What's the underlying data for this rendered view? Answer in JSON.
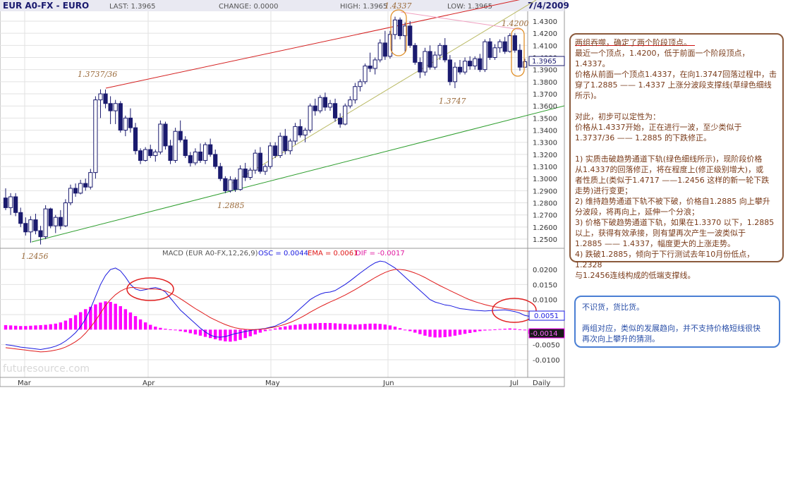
{
  "header": {
    "symbol": "EUR A0-FX - EURO",
    "last": "LAST: 1.3965",
    "change": "CHANGE: 0.0000",
    "high": "HIGH: 1.3965",
    "low": "LOW: 1.3965",
    "date": "7/4/2009"
  },
  "price_panel": {
    "y_ticks": [
      "1.4300",
      "1.4200",
      "1.4100",
      "1.4000",
      "1.3900",
      "1.3800",
      "1.3700",
      "1.3600",
      "1.3500",
      "1.3400",
      "1.3300",
      "1.3200",
      "1.3100",
      "1.3000",
      "1.2900",
      "1.2800",
      "1.2700",
      "1.2600",
      "1.2500"
    ],
    "last_price_label": "1.3965",
    "annotations": [
      "1.3737/36",
      "1.4337",
      "1.4200",
      "1.3747",
      "1.2885",
      "1.2456"
    ]
  },
  "macd_panel": {
    "header_label": "MACD (EUR A0-FX,12,26,9)",
    "osc_label": "OSC = 0.0044",
    "ema_label": "EMA = 0.0061",
    "dif_label": "DIF = -0.0017",
    "y_ticks": [
      "0.0200",
      "0.0150",
      "0.0100",
      "0.0050",
      "-0.0050",
      "-0.0100"
    ],
    "marker_blue": "0.0051",
    "marker_pink": "-0.0014",
    "watermark": "futuresource.com"
  },
  "x_axis": {
    "months": [
      "Mar",
      "Apr",
      "May",
      "Jun",
      "Jul"
    ],
    "period": "Daily"
  },
  "colors": {
    "candle": "#1a1a6e",
    "trend_red": "#d42020",
    "trend_green": "#2e9e2e",
    "trend_olive": "#b8b860",
    "trend_pink": "#f0a0c0",
    "macd_line": "#1a1ae0",
    "signal_line": "#e01a1a",
    "hist": "#ff00ff",
    "annotation": "#9a6a3a"
  },
  "notes": {
    "main": [
      "两组吞噬，确定了两个阶段顶点。",
      "最近一个顶点，1.4200，低于前面一个阶段顶点，",
      "1.4337。",
      "价格从前面一个顶点1.4337，在向1.3747回落过程中，击",
      "穿了1.2885 —— 1.4337 上涨分波段支撑线(草绿色细线",
      "所示)。",
      "",
      "对此，初步可以定性为：",
      "价格从1.4337开始，正在进行一波，至少类似于",
      "1.3737/36 —— 1.2885 的下跌修正。",
      "",
      "1) 实质击破趋势通道下轨(绿色细线所示)，现阶段价格",
      "从1.4337的回落修正，将在程度上(修正级别增大)，或",
      "者性质上(类似于1.4717 ——1.2456 这样的新一轮下跌",
      "走势)进行变更；",
      "2) 维持趋势通道下轨不被下破，价格自1.2885 向上攀升",
      "分波段，将再向上，延伸一个分浪；",
      "3) 价格下破趋势通道下轨，如果在1.3370 以下，1.2885",
      "以上，获得有效承接，则有望再次产生一波类似于",
      "1.2885 —— 1.4337，幅度更大的上涨走势。",
      "4) 跌破1.2885，倾向于下行测试去年10月份低点，1.2328",
      "与1.2456连线构成的低端支撑线。"
    ],
    "blue": [
      "不识货，货比货。",
      "",
      "两组对应，类似的发展趋向，并不支持价格短线很快",
      "再次向上攀升的猜测。"
    ]
  },
  "chart_data": [
    {
      "type": "candlestick",
      "title": "EUR A0-FX - EURO",
      "xlabel": "",
      "ylabel": "",
      "x_categories": [
        "Mar",
        "Apr",
        "May",
        "Jun",
        "Jul"
      ],
      "ylim": [
        1.24,
        1.44
      ],
      "candles_ohlc": [
        [
          1.284,
          1.292,
          1.274,
          1.276
        ],
        [
          1.276,
          1.288,
          1.27,
          1.285
        ],
        [
          1.285,
          1.288,
          1.269,
          1.272
        ],
        [
          1.272,
          1.276,
          1.26,
          1.263
        ],
        [
          1.263,
          1.268,
          1.253,
          1.256
        ],
        [
          1.256,
          1.269,
          1.247,
          1.266
        ],
        [
          1.266,
          1.271,
          1.254,
          1.257
        ],
        [
          1.257,
          1.261,
          1.2456,
          1.252
        ],
        [
          1.252,
          1.278,
          1.25,
          1.275
        ],
        [
          1.275,
          1.276,
          1.259,
          1.261
        ],
        [
          1.261,
          1.27,
          1.255,
          1.268
        ],
        [
          1.268,
          1.274,
          1.258,
          1.261
        ],
        [
          1.261,
          1.283,
          1.26,
          1.28
        ],
        [
          1.28,
          1.295,
          1.278,
          1.292
        ],
        [
          1.292,
          1.296,
          1.285,
          1.288
        ],
        [
          1.288,
          1.299,
          1.287,
          1.296
        ],
        [
          1.296,
          1.3,
          1.29,
          1.293
        ],
        [
          1.293,
          1.308,
          1.291,
          1.305
        ],
        [
          1.305,
          1.368,
          1.3,
          1.365
        ],
        [
          1.365,
          1.3737,
          1.35,
          1.37
        ],
        [
          1.37,
          1.3736,
          1.358,
          1.362
        ],
        [
          1.362,
          1.368,
          1.345,
          1.356
        ],
        [
          1.356,
          1.365,
          1.345,
          1.362
        ],
        [
          1.362,
          1.364,
          1.338,
          1.34
        ],
        [
          1.34,
          1.352,
          1.335,
          1.35
        ],
        [
          1.35,
          1.358,
          1.338,
          1.342
        ],
        [
          1.342,
          1.346,
          1.32,
          1.323
        ],
        [
          1.323,
          1.325,
          1.312,
          1.315
        ],
        [
          1.315,
          1.326,
          1.314,
          1.324
        ],
        [
          1.324,
          1.328,
          1.317,
          1.319
        ],
        [
          1.319,
          1.324,
          1.314,
          1.322
        ],
        [
          1.322,
          1.348,
          1.32,
          1.345
        ],
        [
          1.345,
          1.347,
          1.324,
          1.327
        ],
        [
          1.327,
          1.332,
          1.312,
          1.315
        ],
        [
          1.315,
          1.342,
          1.313,
          1.339
        ],
        [
          1.339,
          1.348,
          1.33,
          1.332
        ],
        [
          1.332,
          1.335,
          1.317,
          1.319
        ],
        [
          1.319,
          1.322,
          1.31,
          1.313
        ],
        [
          1.313,
          1.325,
          1.311,
          1.322
        ],
        [
          1.322,
          1.329,
          1.313,
          1.315
        ],
        [
          1.315,
          1.33,
          1.312,
          1.328
        ],
        [
          1.328,
          1.333,
          1.318,
          1.32
        ],
        [
          1.32,
          1.324,
          1.308,
          1.31
        ],
        [
          1.31,
          1.313,
          1.298,
          1.3
        ],
        [
          1.3,
          1.302,
          1.288,
          1.29
        ],
        [
          1.29,
          1.302,
          1.2885,
          1.299
        ],
        [
          1.299,
          1.301,
          1.289,
          1.291
        ],
        [
          1.291,
          1.311,
          1.29,
          1.308
        ],
        [
          1.308,
          1.313,
          1.298,
          1.301
        ],
        [
          1.301,
          1.309,
          1.299,
          1.307
        ],
        [
          1.307,
          1.324,
          1.304,
          1.321
        ],
        [
          1.321,
          1.326,
          1.304,
          1.306
        ],
        [
          1.306,
          1.312,
          1.303,
          1.31
        ],
        [
          1.31,
          1.33,
          1.308,
          1.327
        ],
        [
          1.327,
          1.33,
          1.317,
          1.319
        ],
        [
          1.319,
          1.338,
          1.317,
          1.335
        ],
        [
          1.335,
          1.341,
          1.32,
          1.323
        ],
        [
          1.323,
          1.333,
          1.32,
          1.331
        ],
        [
          1.331,
          1.346,
          1.328,
          1.343
        ],
        [
          1.343,
          1.349,
          1.334,
          1.336
        ],
        [
          1.336,
          1.342,
          1.33,
          1.34
        ],
        [
          1.34,
          1.362,
          1.338,
          1.36
        ],
        [
          1.36,
          1.366,
          1.352,
          1.356
        ],
        [
          1.356,
          1.369,
          1.354,
          1.367
        ],
        [
          1.367,
          1.371,
          1.356,
          1.359
        ],
        [
          1.359,
          1.365,
          1.356,
          1.362
        ],
        [
          1.362,
          1.366,
          1.347,
          1.35
        ],
        [
          1.35,
          1.354,
          1.342,
          1.345
        ],
        [
          1.345,
          1.362,
          1.344,
          1.36
        ],
        [
          1.36,
          1.368,
          1.358,
          1.365
        ],
        [
          1.365,
          1.379,
          1.362,
          1.376
        ],
        [
          1.376,
          1.382,
          1.372,
          1.38
        ],
        [
          1.38,
          1.395,
          1.378,
          1.393
        ],
        [
          1.393,
          1.404,
          1.388,
          1.391
        ],
        [
          1.391,
          1.4,
          1.386,
          1.398
        ],
        [
          1.398,
          1.415,
          1.396,
          1.412
        ],
        [
          1.412,
          1.422,
          1.398,
          1.401
        ],
        [
          1.401,
          1.422,
          1.399,
          1.419
        ],
        [
          1.419,
          1.4337,
          1.415,
          1.431
        ],
        [
          1.431,
          1.433,
          1.415,
          1.418
        ],
        [
          1.418,
          1.429,
          1.405,
          1.426
        ],
        [
          1.426,
          1.43,
          1.408,
          1.41
        ],
        [
          1.41,
          1.412,
          1.394,
          1.396
        ],
        [
          1.396,
          1.4,
          1.383,
          1.388
        ],
        [
          1.388,
          1.408,
          1.385,
          1.405
        ],
        [
          1.405,
          1.41,
          1.39,
          1.392
        ],
        [
          1.392,
          1.405,
          1.39,
          1.402
        ],
        [
          1.402,
          1.412,
          1.398,
          1.41
        ],
        [
          1.41,
          1.416,
          1.396,
          1.398
        ],
        [
          1.398,
          1.402,
          1.377,
          1.38
        ],
        [
          1.38,
          1.396,
          1.3747,
          1.392
        ],
        [
          1.392,
          1.398,
          1.386,
          1.388
        ],
        [
          1.388,
          1.4,
          1.386,
          1.397
        ],
        [
          1.397,
          1.401,
          1.39,
          1.393
        ],
        [
          1.393,
          1.401,
          1.39,
          1.399
        ],
        [
          1.399,
          1.403,
          1.388,
          1.39
        ],
        [
          1.39,
          1.415,
          1.388,
          1.413
        ],
        [
          1.413,
          1.416,
          1.398,
          1.4
        ],
        [
          1.4,
          1.411,
          1.398,
          1.408
        ],
        [
          1.408,
          1.415,
          1.404,
          1.413
        ],
        [
          1.413,
          1.417,
          1.403,
          1.405
        ],
        [
          1.405,
          1.42,
          1.404,
          1.418
        ],
        [
          1.418,
          1.42,
          1.404,
          1.406
        ],
        [
          1.406,
          1.411,
          1.389,
          1.392
        ],
        [
          1.392,
          1.399,
          1.392,
          1.3965
        ]
      ],
      "last": 1.3965
    },
    {
      "type": "line+bar",
      "title": "MACD (EUR A0-FX,12,26,9)",
      "ylim": [
        -0.013,
        0.023
      ],
      "series": [
        {
          "name": "OSC",
          "kind": "bar",
          "values": [
            0.0015,
            0.0014,
            0.0013,
            0.0012,
            0.0012,
            0.0013,
            0.0014,
            0.0015,
            0.0016,
            0.0018,
            0.002,
            0.0024,
            0.003,
            0.0038,
            0.0048,
            0.0058,
            0.0068,
            0.0076,
            0.0084,
            0.009,
            0.0094,
            0.0092,
            0.0086,
            0.0078,
            0.0068,
            0.0057,
            0.0045,
            0.0034,
            0.0024,
            0.0016,
            0.001,
            0.0006,
            0.0003,
            0.0001,
            -0.0002,
            -0.0005,
            -0.0008,
            -0.0012,
            -0.0016,
            -0.002,
            -0.0024,
            -0.0028,
            -0.0032,
            -0.0036,
            -0.0039,
            -0.004,
            -0.0038,
            -0.0034,
            -0.0028,
            -0.0022,
            -0.0016,
            -0.001,
            -0.0005,
            0.0,
            0.0004,
            0.0008,
            0.0011,
            0.0014,
            0.0016,
            0.0018,
            0.0019,
            0.002,
            0.0021,
            0.0022,
            0.0022,
            0.0022,
            0.0021,
            0.002,
            0.0019,
            0.0018,
            0.0017,
            0.0018,
            0.0019,
            0.002,
            0.002,
            0.0019,
            0.0017,
            0.0014,
            0.001,
            0.0005,
            0.0,
            -0.0005,
            -0.001,
            -0.0015,
            -0.002,
            -0.0024,
            -0.0026,
            -0.0026,
            -0.0025,
            -0.0023,
            -0.002,
            -0.0017,
            -0.0014,
            -0.0011,
            -0.0008,
            -0.0005,
            -0.0003,
            -0.0001,
            0.0001,
            0.0002,
            0.0003,
            0.0004,
            0.0003,
            0.0001,
            -0.0002,
            -0.0014
          ]
        },
        {
          "name": "MACD",
          "kind": "line",
          "values": [
            -0.005,
            -0.0052,
            -0.0055,
            -0.0058,
            -0.006,
            -0.0062,
            -0.0064,
            -0.0066,
            -0.0063,
            -0.006,
            -0.0055,
            -0.0048,
            -0.0038,
            -0.0025,
            -0.001,
            0.001,
            0.0035,
            0.007,
            0.011,
            0.015,
            0.018,
            0.02,
            0.0205,
            0.0195,
            0.0175,
            0.015,
            0.0135,
            0.013,
            0.0133,
            0.0137,
            0.014,
            0.0135,
            0.0125,
            0.0105,
            0.0085,
            0.0065,
            0.005,
            0.0035,
            0.002,
            0.0005,
            -0.0008,
            -0.0018,
            -0.0024,
            -0.0025,
            -0.0023,
            -0.0018,
            -0.0013,
            -0.001,
            -0.0006,
            -0.0003,
            0.0,
            0.0002,
            0.0004,
            0.0008,
            0.0012,
            0.002,
            0.0028,
            0.004,
            0.0055,
            0.007,
            0.0085,
            0.01,
            0.011,
            0.0118,
            0.0123,
            0.0125,
            0.013,
            0.014,
            0.015,
            0.0162,
            0.0175,
            0.0188,
            0.02,
            0.0212,
            0.0222,
            0.0228,
            0.0225,
            0.0215,
            0.0205,
            0.019,
            0.0175,
            0.016,
            0.0145,
            0.013,
            0.0115,
            0.01,
            0.0092,
            0.0087,
            0.0082,
            0.008,
            0.0075,
            0.007,
            0.0068,
            0.0066,
            0.0064,
            0.0063,
            0.0062,
            0.0063,
            0.0064,
            0.0065,
            0.0066,
            0.0063,
            0.006,
            0.0055,
            0.0047,
            0.0044
          ]
        },
        {
          "name": "EMA",
          "kind": "line",
          "values": [
            -0.006,
            -0.0062,
            -0.0064,
            -0.0066,
            -0.0068,
            -0.007,
            -0.0072,
            -0.0074,
            -0.0073,
            -0.0071,
            -0.0068,
            -0.0064,
            -0.0058,
            -0.005,
            -0.004,
            -0.0028,
            -0.0012,
            0.0008,
            0.003,
            0.0055,
            0.008,
            0.01,
            0.0116,
            0.0128,
            0.0136,
            0.014,
            0.014,
            0.0138,
            0.0136,
            0.0135,
            0.0135,
            0.0133,
            0.0129,
            0.0122,
            0.0113,
            0.0103,
            0.0092,
            0.0081,
            0.007,
            0.006,
            0.005,
            0.004,
            0.0032,
            0.0024,
            0.0017,
            0.0011,
            0.0006,
            0.0003,
            0.0001,
            0.0,
            0.0,
            0.0001,
            0.0003,
            0.0006,
            0.0009,
            0.0013,
            0.0018,
            0.0024,
            0.0031,
            0.0039,
            0.0048,
            0.0058,
            0.0067,
            0.0076,
            0.0084,
            0.0092,
            0.0099,
            0.0107,
            0.0115,
            0.0124,
            0.0133,
            0.0143,
            0.0153,
            0.0163,
            0.0173,
            0.0182,
            0.019,
            0.0196,
            0.02,
            0.02,
            0.0198,
            0.0194,
            0.0188,
            0.0181,
            0.0173,
            0.0164,
            0.0155,
            0.0146,
            0.0138,
            0.013,
            0.0122,
            0.0114,
            0.0106,
            0.0099,
            0.0093,
            0.0088,
            0.0083,
            0.0079,
            0.0076,
            0.0073,
            0.007,
            0.0068,
            0.0066,
            0.0064,
            0.0062,
            0.0061
          ]
        }
      ]
    }
  ]
}
